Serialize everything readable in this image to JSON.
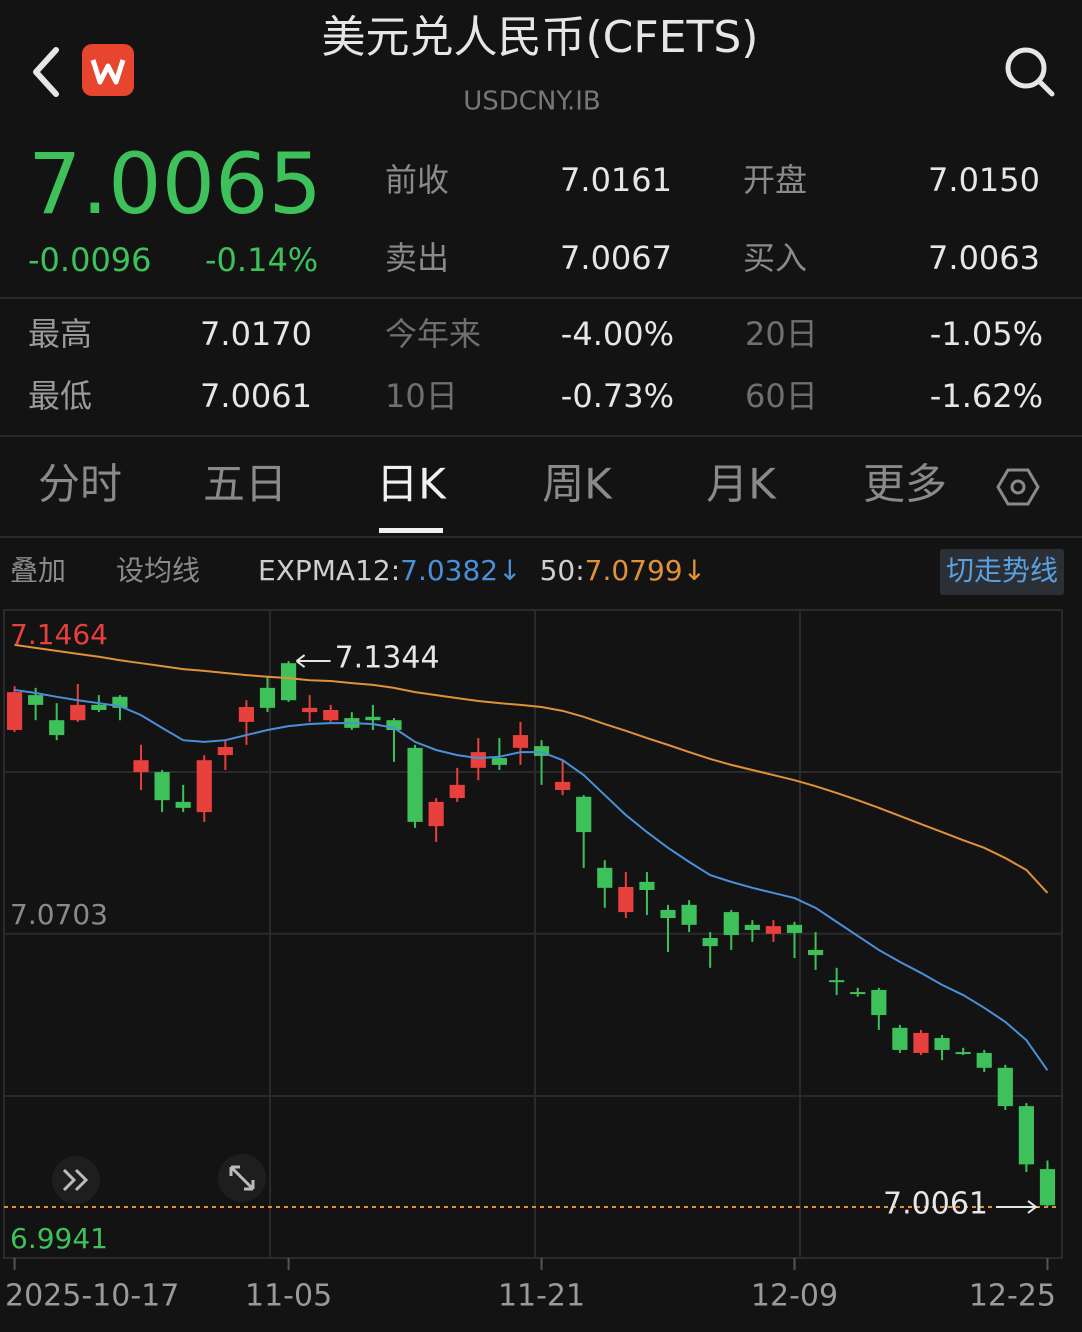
{
  "header": {
    "title": "美元兑人民币(CFETS)",
    "subtitle": "USDCNY.IB"
  },
  "quote": {
    "price": "7.0065",
    "change": "-0.0096",
    "change_pct": "-0.14%"
  },
  "stats": [
    [
      {
        "label": "前收",
        "value": "7.0161"
      },
      {
        "label": "开盘",
        "value": "7.0150"
      }
    ],
    [
      {
        "label": "卖出",
        "value": "7.0067"
      },
      {
        "label": "买入",
        "value": "7.0063"
      }
    ]
  ],
  "ranges": [
    [
      {
        "label": "最高",
        "value": "7.0170"
      },
      {
        "label": "今年来",
        "value": "-4.00%"
      },
      {
        "label": "20日",
        "value": "-1.05%"
      }
    ],
    [
      {
        "label": "最低",
        "value": "7.0061"
      },
      {
        "label": "10日",
        "value": "-0.73%"
      },
      {
        "label": "60日",
        "value": "-1.62%"
      }
    ]
  ],
  "tabs": [
    "分时",
    "五日",
    "日K",
    "周K",
    "月K",
    "更多"
  ],
  "active_tab": 2,
  "toolbar": {
    "overlay": "叠加",
    "set_ma": "设均线",
    "switch": "切走势线"
  },
  "chart_data": {
    "type": "candlestick",
    "categories": [
      "2025-10-17",
      null,
      null,
      null,
      null,
      null,
      null,
      null,
      null,
      null,
      null,
      null,
      null,
      "11-05",
      null,
      null,
      null,
      null,
      null,
      null,
      null,
      null,
      null,
      null,
      null,
      "11-21",
      null,
      null,
      null,
      null,
      null,
      null,
      null,
      null,
      null,
      null,
      null,
      "12-09",
      null,
      null,
      null,
      null,
      null,
      null,
      null,
      null,
      null,
      null,
      null,
      "12-25"
    ],
    "open": [
      7.1182,
      7.1264,
      7.1205,
      7.1205,
      7.1241,
      7.126,
      7.1083,
      7.1083,
      7.1013,
      7.0989,
      7.1123,
      7.1201,
      7.1281,
      7.1339,
      7.1224,
      7.1205,
      7.121,
      7.1213,
      7.1205,
      7.114,
      7.0956,
      7.1022,
      7.1093,
      7.1116,
      7.114,
      7.1144,
      7.1041,
      7.1025,
      7.0858,
      7.0754,
      7.0825,
      7.0759,
      7.0771,
      7.0693,
      7.0754,
      7.0724,
      7.0703,
      7.0724,
      7.0665,
      7.0594,
      7.0566,
      7.0571,
      7.0482,
      7.0423,
      7.0458,
      7.0425,
      7.0423,
      7.0388,
      7.0298,
      7.015
    ],
    "high": [
      7.1285,
      7.1281,
      7.1245,
      7.129,
      7.1264,
      7.1264,
      7.1147,
      7.1088,
      7.1053,
      7.1123,
      7.1158,
      7.1252,
      7.1309,
      7.1344,
      7.1264,
      7.1241,
      7.1224,
      7.1241,
      7.121,
      7.1147,
      7.1022,
      7.1093,
      7.1163,
      7.1163,
      7.1201,
      7.1158,
      7.1111,
      7.1029,
      7.0876,
      7.0848,
      7.0848,
      7.0771,
      7.0782,
      7.0707,
      7.0759,
      7.0735,
      7.0735,
      7.0731,
      7.0707,
      7.0623,
      7.0576,
      7.0576,
      7.0489,
      7.0477,
      7.0465,
      7.0435,
      7.043,
      7.0395,
      7.0305,
      7.017
    ],
    "low": [
      7.1177,
      7.1205,
      7.1158,
      7.1201,
      7.1224,
      7.1205,
      7.1041,
      7.0989,
      7.0989,
      7.0966,
      7.1088,
      7.1147,
      7.1224,
      7.1248,
      7.1201,
      7.1201,
      7.1182,
      7.1182,
      7.1107,
      7.0952,
      7.0919,
      7.1013,
      7.1064,
      7.1088,
      7.11,
      7.1053,
      7.1029,
      7.0858,
      7.0764,
      7.074,
      7.0747,
      7.066,
      7.0707,
      7.0623,
      7.0665,
      7.0684,
      7.0684,
      7.0646,
      7.0618,
      7.0559,
      7.0555,
      7.0477,
      7.0423,
      7.0418,
      7.0406,
      7.0418,
      7.0378,
      7.0289,
      7.0143,
      7.0061
    ],
    "close": [
      7.1271,
      7.1241,
      7.117,
      7.1241,
      7.1229,
      7.1234,
      7.1111,
      7.1017,
      7.0999,
      7.1111,
      7.1142,
      7.1236,
      7.1234,
      7.1252,
      7.1234,
      7.1229,
      7.1187,
      7.1205,
      7.1182,
      7.0966,
      7.1013,
      7.1053,
      7.113,
      7.11,
      7.117,
      7.1121,
      7.106,
      7.0942,
      7.0811,
      7.0813,
      7.0806,
      7.074,
      7.0724,
      7.0674,
      7.07,
      7.0712,
      7.0721,
      7.0705,
      7.0653,
      7.059,
      7.0562,
      7.0512,
      7.043,
      7.047,
      7.043,
      7.0421,
      7.0388,
      7.0298,
      7.0161,
      7.0065
    ],
    "up_color": "#e8403c",
    "down_color": "#3ec15a",
    "lines": [
      {
        "name": "EXPMA12:",
        "legend_value": "7.0382↓",
        "color": "#4a90d9",
        "values": [
          7.1276,
          7.1269,
          7.126,
          7.1252,
          7.1245,
          7.1238,
          7.1217,
          7.1187,
          7.1158,
          7.1154,
          7.1158,
          7.117,
          7.1182,
          7.1191,
          7.1196,
          7.1198,
          7.1198,
          7.1196,
          7.1187,
          7.1154,
          7.1135,
          7.1123,
          7.1116,
          7.1119,
          7.113,
          7.113,
          7.1111,
          7.1076,
          7.1029,
          7.0982,
          7.0942,
          7.0905,
          7.0872,
          7.0841,
          7.0825,
          7.0811,
          7.0799,
          7.0787,
          7.0764,
          7.0731,
          7.0698,
          7.0665,
          7.0637,
          7.0611,
          7.0583,
          7.0559,
          7.0529,
          7.0496,
          7.0453,
          7.0382
        ]
      },
      {
        "name": "50:",
        "legend_value": "7.0799↓",
        "color": "#e0913a",
        "values": [
          7.1382,
          7.1375,
          7.1368,
          7.1361,
          7.1354,
          7.1346,
          7.1339,
          7.1332,
          7.1325,
          7.1321,
          7.1316,
          7.1311,
          7.1307,
          7.1304,
          7.1299,
          7.1297,
          7.1292,
          7.1288,
          7.1281,
          7.1271,
          7.1264,
          7.1257,
          7.125,
          7.1245,
          7.1241,
          7.1236,
          7.1227,
          7.1213,
          7.1196,
          7.118,
          7.1163,
          7.1147,
          7.113,
          7.1114,
          7.11,
          7.1088,
          7.1076,
          7.1064,
          7.105,
          7.1034,
          7.1017,
          7.0999,
          7.098,
          7.0961,
          7.0942,
          7.0923,
          7.0905,
          7.0881,
          7.0853,
          7.0799
        ]
      }
    ],
    "ylim": [
      6.9941,
      7.1464
    ],
    "yticks": [
      7.1464,
      7.0703,
      6.9941
    ],
    "ytick_colors": [
      "#e8403c",
      "#8a8a8a",
      "#3ec15a"
    ],
    "grid": true,
    "max_marker": 7.1344,
    "min_marker": 7.0061
  }
}
